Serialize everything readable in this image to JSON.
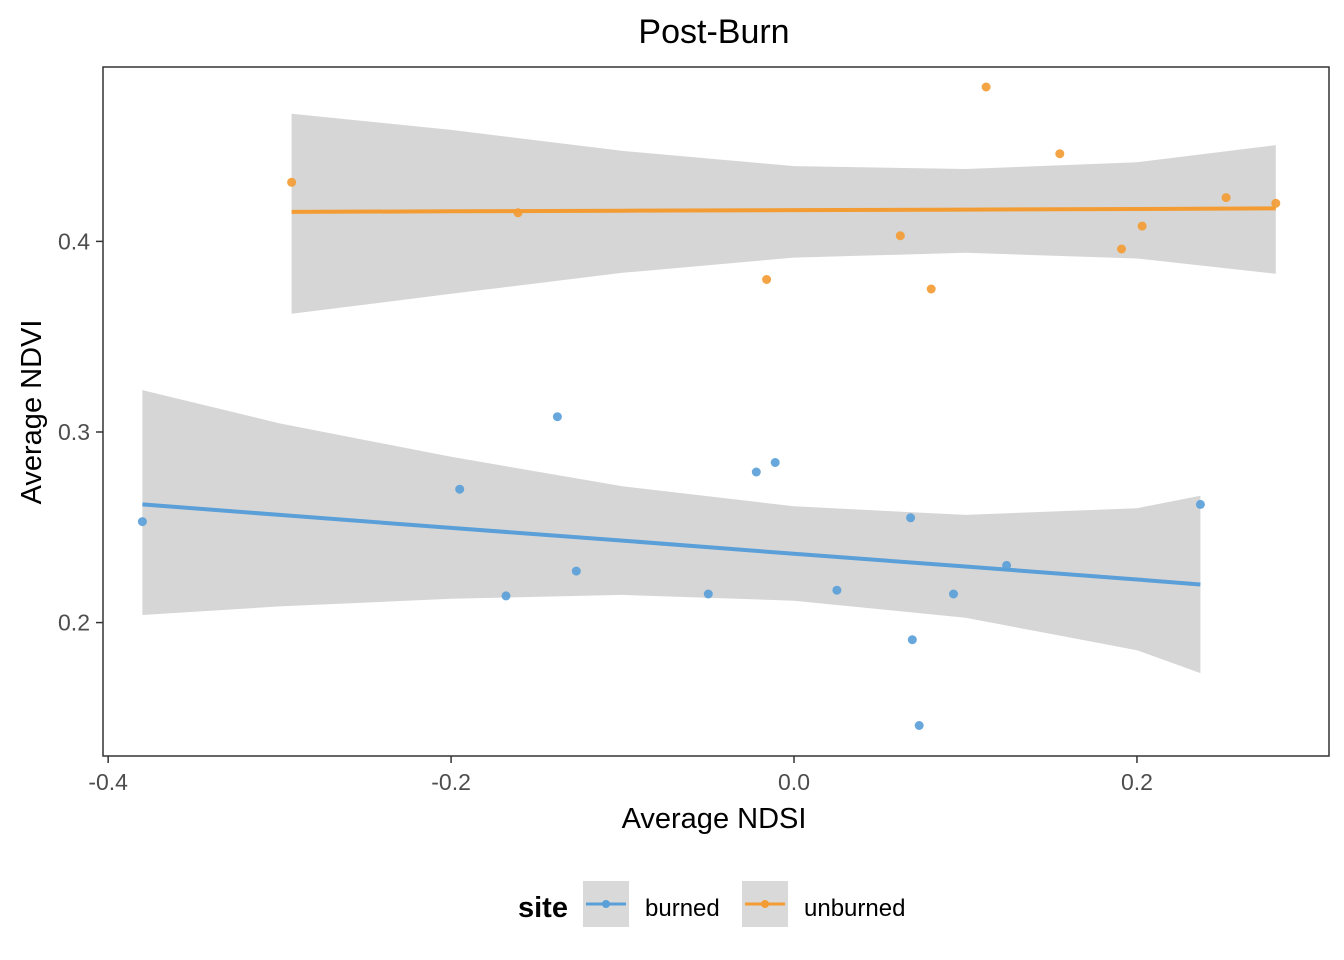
{
  "chart_data": {
    "type": "scatter",
    "title": "Post-Burn",
    "xlabel": "Average NDSI",
    "ylabel": "Average NDVI",
    "xlim": [
      -0.403,
      0.312
    ],
    "ylim": [
      0.13,
      0.4915
    ],
    "x_ticks": [
      -0.4,
      -0.2,
      0.0,
      0.2
    ],
    "x_tick_labels": [
      "-0.4",
      "-0.2",
      "0.0",
      "0.2"
    ],
    "y_ticks": [
      0.2,
      0.3,
      0.4
    ],
    "y_tick_labels": [
      "0.2",
      "0.3",
      "0.4"
    ],
    "grid": false,
    "legend": {
      "title": "site",
      "position": "bottom",
      "entries": [
        "burned",
        "unburned"
      ]
    },
    "series": [
      {
        "name": "burned",
        "color": "#5b9fd8",
        "points": [
          {
            "x": -0.38,
            "y": 0.253
          },
          {
            "x": -0.195,
            "y": 0.27
          },
          {
            "x": -0.168,
            "y": 0.214
          },
          {
            "x": -0.138,
            "y": 0.308
          },
          {
            "x": -0.127,
            "y": 0.227
          },
          {
            "x": -0.05,
            "y": 0.215
          },
          {
            "x": -0.022,
            "y": 0.279
          },
          {
            "x": -0.011,
            "y": 0.284
          },
          {
            "x": 0.025,
            "y": 0.217
          },
          {
            "x": 0.068,
            "y": 0.255
          },
          {
            "x": 0.069,
            "y": 0.191
          },
          {
            "x": 0.073,
            "y": 0.146
          },
          {
            "x": 0.093,
            "y": 0.215
          },
          {
            "x": 0.124,
            "y": 0.23
          },
          {
            "x": 0.237,
            "y": 0.262
          }
        ],
        "fit": {
          "x": [
            -0.38,
            -0.3,
            -0.2,
            -0.1,
            0.0,
            0.1,
            0.2,
            0.237
          ],
          "y": [
            0.262,
            0.2565,
            0.2497,
            0.243,
            0.2361,
            0.2294,
            0.2226,
            0.22
          ],
          "lower": [
            0.204,
            0.2085,
            0.2125,
            0.2145,
            0.2115,
            0.2025,
            0.1855,
            0.1735
          ],
          "upper": [
            0.322,
            0.3045,
            0.287,
            0.2715,
            0.261,
            0.2565,
            0.26,
            0.2665
          ]
        }
      },
      {
        "name": "unburned",
        "color": "#f39c34",
        "points": [
          {
            "x": -0.293,
            "y": 0.431
          },
          {
            "x": -0.161,
            "y": 0.415
          },
          {
            "x": -0.016,
            "y": 0.38
          },
          {
            "x": 0.062,
            "y": 0.403
          },
          {
            "x": 0.08,
            "y": 0.375
          },
          {
            "x": 0.112,
            "y": 0.481
          },
          {
            "x": 0.155,
            "y": 0.446
          },
          {
            "x": 0.191,
            "y": 0.396
          },
          {
            "x": 0.203,
            "y": 0.408
          },
          {
            "x": 0.252,
            "y": 0.423
          },
          {
            "x": 0.281,
            "y": 0.42
          }
        ],
        "fit": {
          "x": [
            -0.293,
            -0.2,
            -0.1,
            0.0,
            0.1,
            0.2,
            0.281
          ],
          "y": [
            0.4155,
            0.4158,
            0.4161,
            0.4164,
            0.4167,
            0.417,
            0.4173
          ],
          "lower": [
            0.362,
            0.3725,
            0.3835,
            0.3915,
            0.394,
            0.391,
            0.383
          ],
          "upper": [
            0.467,
            0.4585,
            0.4475,
            0.4395,
            0.438,
            0.4415,
            0.4505
          ]
        }
      }
    ]
  }
}
